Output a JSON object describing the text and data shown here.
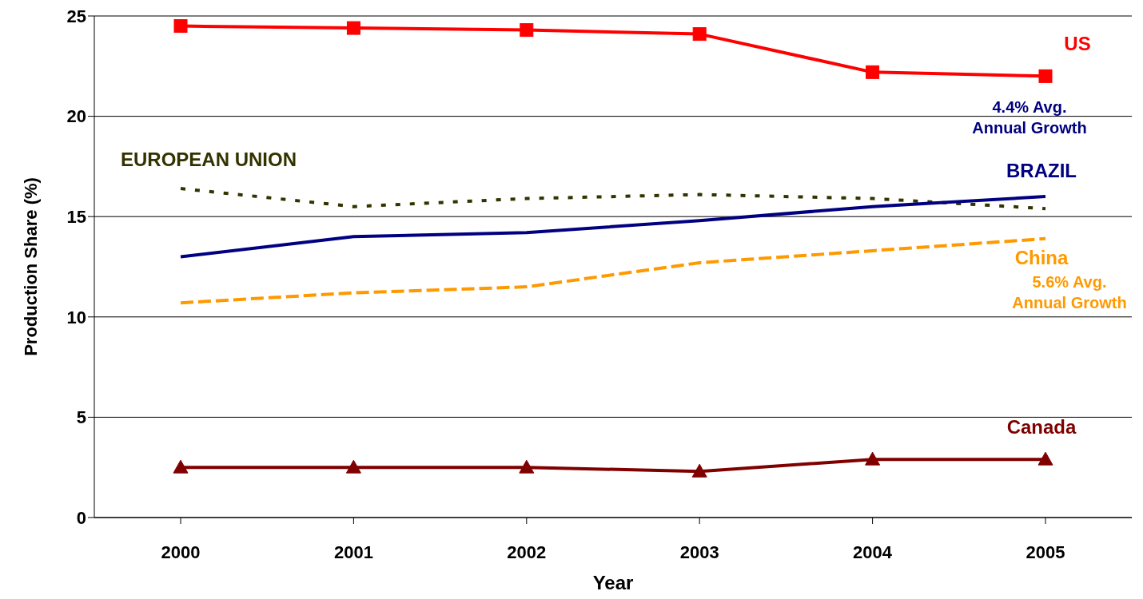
{
  "chart_data": {
    "type": "line",
    "xlabel": "Year",
    "ylabel": "Production Share (%)",
    "categories": [
      "2000",
      "2001",
      "2002",
      "2003",
      "2004",
      "2005"
    ],
    "series": [
      {
        "name": "US",
        "color": "#ff0000",
        "marker": "square",
        "line_style": "solid",
        "values": [
          24.5,
          24.4,
          24.3,
          24.1,
          22.2,
          22.0
        ]
      },
      {
        "name": "EUROPEAN UNION",
        "color": "#333300",
        "marker": "none",
        "line_style": "dotted",
        "values": [
          16.4,
          15.5,
          15.9,
          16.1,
          15.9,
          15.4
        ]
      },
      {
        "name": "BRAZIL",
        "color": "#000080",
        "marker": "none",
        "line_style": "solid",
        "values": [
          13.0,
          14.0,
          14.2,
          14.8,
          15.5,
          16.0
        ]
      },
      {
        "name": "China",
        "color": "#ff9900",
        "marker": "none",
        "line_style": "dashed",
        "values": [
          10.7,
          11.2,
          11.5,
          12.7,
          13.3,
          13.9
        ]
      },
      {
        "name": "Canada",
        "color": "#800000",
        "marker": "triangle",
        "line_style": "solid",
        "values": [
          2.5,
          2.5,
          2.5,
          2.3,
          2.9,
          2.9
        ]
      }
    ],
    "annotations": [
      "4.4% Avg.\nAnnual Growth",
      "5.6% Avg.\nAnnual Growth"
    ],
    "ylim": [
      0,
      25
    ],
    "yticks": [
      0,
      5,
      10,
      15,
      20,
      25
    ],
    "grid": "y",
    "legend": false
  }
}
